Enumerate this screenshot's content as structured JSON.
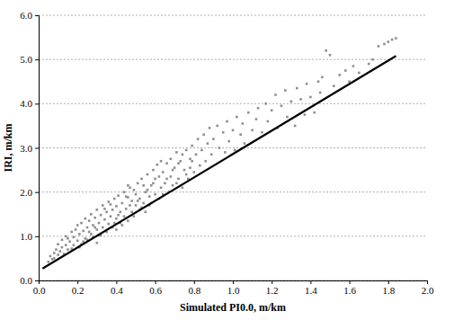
{
  "chart_data": {
    "type": "scatter",
    "xlabel": "Simulated PI0.0, m/km",
    "ylabel": "IRI, m/km",
    "xlim": [
      0,
      2
    ],
    "ylim": [
      0,
      6
    ],
    "xticks": [
      {
        "value": 0,
        "label": "0.0"
      },
      {
        "value": 0.2,
        "label": "0.2"
      },
      {
        "value": 0.4,
        "label": "0.4"
      },
      {
        "value": 0.6,
        "label": "0.6"
      },
      {
        "value": 0.8,
        "label": "0.8"
      },
      {
        "value": 1,
        "label": "1.0"
      },
      {
        "value": 1.2,
        "label": "1.2"
      },
      {
        "value": 1.4,
        "label": "1.4"
      },
      {
        "value": 1.6,
        "label": "1.6"
      },
      {
        "value": 1.8,
        "label": "1.8"
      },
      {
        "value": 2,
        "label": "2.0"
      }
    ],
    "yticks": [
      {
        "value": 0,
        "label": "0.0"
      },
      {
        "value": 1,
        "label": "1.0"
      },
      {
        "value": 2,
        "label": "2.0"
      },
      {
        "value": 3,
        "label": "3.0"
      },
      {
        "value": 4,
        "label": "4.0"
      },
      {
        "value": 5,
        "label": "5.0"
      },
      {
        "value": 6,
        "label": "6.0"
      }
    ],
    "grid": true,
    "series": [
      {
        "type": "scatter",
        "color": "#8f8f8f",
        "marker": "square",
        "x": [
          0.05,
          0.06,
          0.07,
          0.08,
          0.08,
          0.09,
          0.1,
          0.1,
          0.11,
          0.12,
          0.12,
          0.13,
          0.14,
          0.14,
          0.15,
          0.15,
          0.16,
          0.17,
          0.17,
          0.18,
          0.18,
          0.19,
          0.2,
          0.2,
          0.21,
          0.22,
          0.22,
          0.23,
          0.24,
          0.24,
          0.25,
          0.25,
          0.26,
          0.27,
          0.27,
          0.28,
          0.28,
          0.29,
          0.3,
          0.3,
          0.31,
          0.31,
          0.32,
          0.33,
          0.33,
          0.34,
          0.35,
          0.35,
          0.36,
          0.36,
          0.37,
          0.38,
          0.38,
          0.39,
          0.4,
          0.4,
          0.41,
          0.42,
          0.42,
          0.43,
          0.44,
          0.44,
          0.45,
          0.46,
          0.46,
          0.47,
          0.48,
          0.48,
          0.49,
          0.5,
          0.5,
          0.51,
          0.52,
          0.52,
          0.53,
          0.54,
          0.55,
          0.55,
          0.56,
          0.57,
          0.58,
          0.58,
          0.59,
          0.6,
          0.6,
          0.61,
          0.62,
          0.63,
          0.64,
          0.65,
          0.66,
          0.67,
          0.68,
          0.68,
          0.69,
          0.7,
          0.71,
          0.72,
          0.73,
          0.74,
          0.75,
          0.76,
          0.77,
          0.78,
          0.79,
          0.8,
          0.81,
          0.82,
          0.83,
          0.84,
          0.85,
          0.86,
          0.87,
          0.88,
          0.89,
          0.9,
          0.92,
          0.93,
          0.95,
          0.96,
          0.97,
          0.98,
          1.0,
          1.01,
          1.02,
          1.04,
          1.05,
          1.06,
          1.08,
          1.1,
          1.12,
          1.13,
          1.15,
          1.17,
          1.18,
          1.2,
          1.22,
          1.23,
          1.25,
          1.27,
          1.28,
          1.3,
          1.32,
          1.33,
          1.35,
          1.37,
          1.38,
          1.4,
          1.42,
          1.44,
          1.45,
          1.46,
          1.48,
          1.5,
          1.52,
          1.55,
          1.58,
          1.6,
          1.62,
          1.65,
          1.7,
          1.72,
          1.75,
          1.78,
          1.8,
          1.82,
          1.84,
          0.3,
          0.4,
          0.46,
          0.21,
          0.23,
          0.26,
          0.29,
          0.32,
          0.34,
          0.37,
          0.39,
          0.41,
          0.43,
          0.45,
          0.47,
          0.49,
          0.51,
          0.53,
          0.54,
          0.56,
          0.57,
          0.59,
          0.62,
          0.63,
          0.64,
          0.66,
          0.69,
          0.71,
          0.72,
          0.74,
          0.76,
          0.78,
          0.79
        ],
        "values": [
          0.42,
          0.55,
          0.48,
          0.62,
          0.5,
          0.7,
          0.58,
          0.82,
          0.66,
          0.75,
          0.92,
          0.6,
          0.8,
          1.0,
          0.7,
          0.95,
          0.88,
          0.72,
          1.1,
          0.98,
          0.8,
          1.15,
          0.9,
          1.25,
          1.05,
          0.82,
          1.3,
          1.12,
          0.95,
          1.4,
          1.2,
          0.92,
          1.35,
          1.05,
          1.5,
          1.25,
          0.98,
          1.42,
          1.15,
          1.6,
          1.3,
          1.02,
          1.48,
          1.2,
          1.7,
          1.38,
          1.1,
          1.55,
          1.78,
          1.28,
          1.45,
          1.6,
          1.2,
          1.85,
          1.4,
          1.68,
          1.92,
          1.3,
          1.55,
          1.75,
          2.0,
          1.45,
          1.62,
          1.88,
          1.35,
          2.1,
          1.55,
          1.8,
          2.05,
          1.7,
          1.95,
          2.2,
          1.6,
          1.85,
          2.3,
          1.75,
          2.0,
          1.55,
          2.4,
          1.9,
          2.15,
          1.75,
          2.5,
          1.95,
          2.3,
          2.62,
          1.85,
          2.1,
          2.45,
          2.2,
          2.65,
          2.0,
          2.35,
          2.75,
          2.15,
          2.55,
          2.9,
          2.3,
          2.7,
          2.1,
          2.5,
          2.95,
          2.3,
          2.75,
          3.05,
          2.45,
          2.85,
          3.2,
          2.6,
          2.95,
          3.3,
          2.7,
          3.1,
          3.45,
          2.85,
          3.2,
          3.5,
          3.0,
          3.35,
          2.9,
          3.6,
          3.15,
          3.4,
          2.95,
          3.7,
          3.3,
          3.55,
          3.1,
          3.8,
          3.4,
          3.65,
          3.9,
          3.35,
          4.0,
          3.6,
          3.85,
          4.2,
          3.45,
          3.95,
          4.3,
          3.7,
          4.05,
          3.5,
          4.35,
          4.1,
          3.75,
          4.45,
          4.15,
          3.8,
          4.5,
          4.25,
          4.6,
          5.2,
          5.1,
          4.4,
          4.65,
          4.75,
          4.5,
          4.85,
          4.7,
          4.9,
          5.0,
          5.3,
          5.35,
          5.4,
          5.45,
          5.48,
          0.85,
          1.15,
          2.15,
          0.75,
          0.88,
          1.1,
          1.2,
          1.02,
          1.62,
          1.72,
          1.3,
          1.48,
          1.25,
          1.9,
          1.7,
          1.45,
          1.8,
          1.65,
          2.15,
          2.05,
          1.7,
          2.2,
          2.35,
          2.7,
          1.95,
          2.3,
          2.5,
          2.2,
          2.65,
          2.85,
          2.4,
          2.55,
          2.7
        ]
      },
      {
        "type": "line",
        "color": "#000000",
        "line_style": "solid",
        "x": [
          0.02,
          1.84
        ],
        "values": [
          0.27,
          5.08
        ]
      }
    ]
  }
}
